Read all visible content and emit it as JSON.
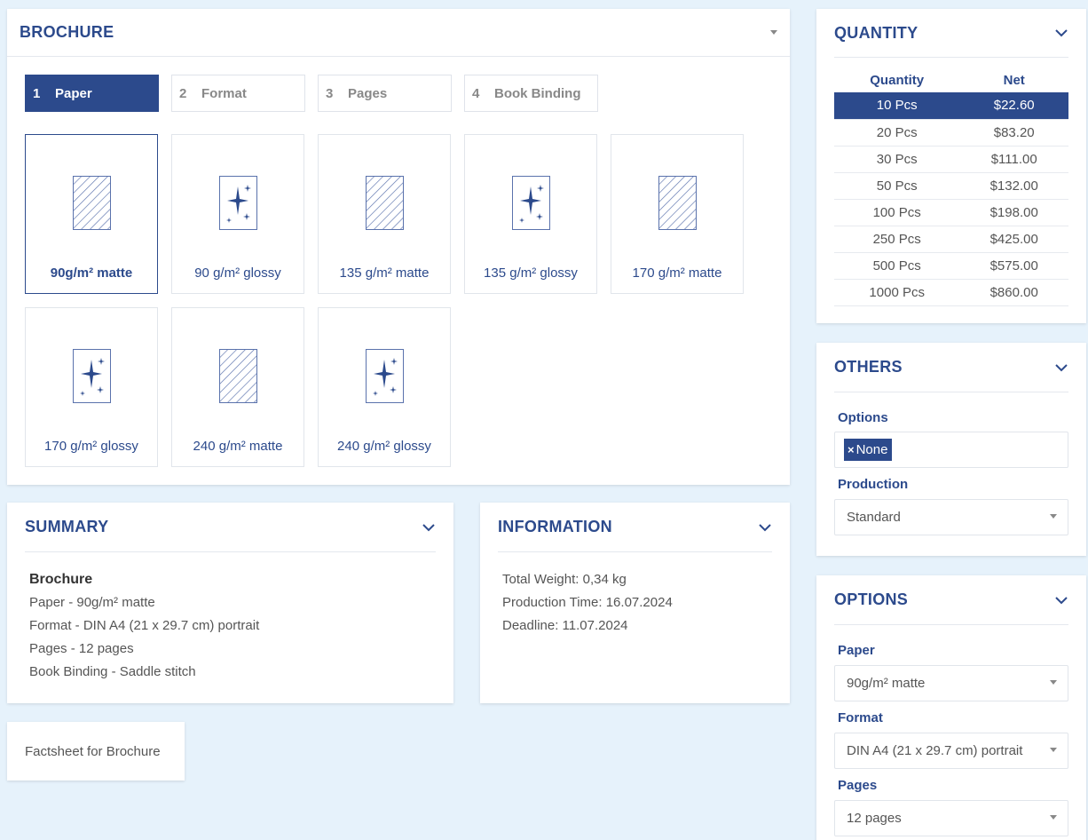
{
  "brochure": {
    "title": "BROCHURE",
    "steps": [
      {
        "num": "1",
        "label": "Paper"
      },
      {
        "num": "2",
        "label": "Format"
      },
      {
        "num": "3",
        "label": "Pages"
      },
      {
        "num": "4",
        "label": "Book Binding"
      }
    ],
    "papers": [
      {
        "label": "90g/m² matte",
        "icon": "matte-paper-icon"
      },
      {
        "label": "90 g/m² glossy",
        "icon": "glossy-paper-icon"
      },
      {
        "label": "135 g/m² matte",
        "icon": "matte-paper-icon"
      },
      {
        "label": "135 g/m² glossy",
        "icon": "glossy-paper-icon"
      },
      {
        "label": "170 g/m² matte",
        "icon": "matte-paper-icon"
      },
      {
        "label": "170 g/m² glossy",
        "icon": "glossy-paper-icon"
      },
      {
        "label": "240 g/m² matte",
        "icon": "matte-paper-icon"
      },
      {
        "label": "240 g/m² glossy",
        "icon": "glossy-paper-icon"
      }
    ]
  },
  "quantity": {
    "title": "QUANTITY",
    "col_quantity": "Quantity",
    "col_net": "Net",
    "rows": [
      {
        "qty": "10 Pcs",
        "net": "$22.60"
      },
      {
        "qty": "20 Pcs",
        "net": "$83.20"
      },
      {
        "qty": "30 Pcs",
        "net": "$111.00"
      },
      {
        "qty": "50 Pcs",
        "net": "$132.00"
      },
      {
        "qty": "100 Pcs",
        "net": "$198.00"
      },
      {
        "qty": "250 Pcs",
        "net": "$425.00"
      },
      {
        "qty": "500 Pcs",
        "net": "$575.00"
      },
      {
        "qty": "1000 Pcs",
        "net": "$860.00"
      }
    ]
  },
  "others": {
    "title": "OTHERS",
    "options_label": "Options",
    "options_chip": "None",
    "production_label": "Production",
    "production_value": "Standard"
  },
  "options": {
    "title": "OPTIONS",
    "paper_label": "Paper",
    "paper_value": "90g/m² matte",
    "format_label": "Format",
    "format_value": "DIN A4 (21 x 29.7 cm) portrait",
    "pages_label": "Pages",
    "pages_value": "12 pages"
  },
  "summary": {
    "title": "SUMMARY",
    "heading": "Brochure",
    "lines": [
      "Paper - 90g/m² matte",
      "Format - DIN A4 (21 x 29.7 cm) portrait",
      "Pages - 12 pages",
      "Book Binding - Saddle stitch"
    ]
  },
  "information": {
    "title": "INFORMATION",
    "lines": [
      "Total Weight: 0,34 kg",
      "Production Time: 16.07.2024",
      "Deadline: 11.07.2024"
    ]
  },
  "factsheet": {
    "label": "Factsheet for Brochure"
  },
  "colors": {
    "accent": "#2c4a8c",
    "background": "#e6f2fb"
  }
}
